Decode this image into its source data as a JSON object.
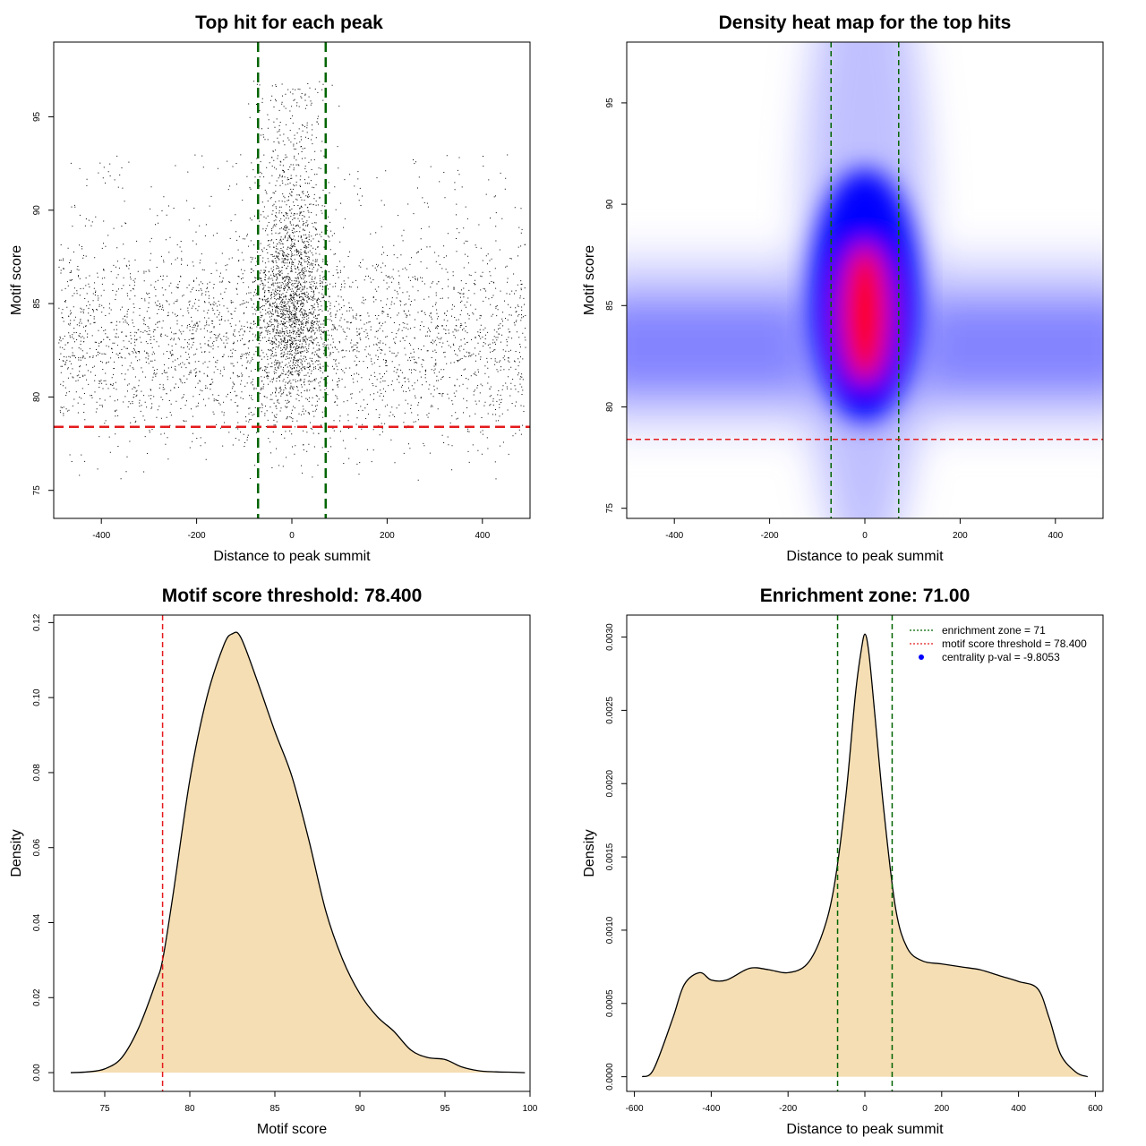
{
  "colors": {
    "frame": "#000000",
    "green_line": "#006400",
    "red_line": "#e41a1c",
    "fill_wheat": "#f5deb3",
    "heat_low": "#ffffff",
    "heat_mid": "#0000ff",
    "heat_high": "#ff0000"
  },
  "chart_data": [
    {
      "type": "scatter",
      "title": "Top hit for each peak",
      "xlabel": "Distance to peak summit",
      "ylabel": "Motif score",
      "xlim": [
        -500,
        500
      ],
      "ylim": [
        73.5,
        99
      ],
      "xticks": [
        "-400",
        "-200",
        "0",
        "200",
        "400"
      ],
      "yticks": [
        "75",
        "80",
        "85",
        "90",
        "95"
      ],
      "enrichment_zone": [
        -71,
        71
      ],
      "threshold": 78.4,
      "points_note": "approx. 9000 points; dense vertical column near 0"
    },
    {
      "type": "heatmap",
      "title": "Density heat map for the top hits",
      "xlabel": "Distance to peak summit",
      "ylabel": "Motif score",
      "xlim": [
        -500,
        500
      ],
      "ylim": [
        74.5,
        98
      ],
      "xticks": [
        "-400",
        "-200",
        "0",
        "200",
        "400"
      ],
      "yticks": [
        "75",
        "80",
        "85",
        "90",
        "95"
      ],
      "enrichment_zone": [
        -71,
        71
      ],
      "threshold": 78.4,
      "hotspot": {
        "x": 0,
        "y": 84.5
      },
      "baseline_band_y": 82.5
    },
    {
      "type": "area",
      "title": "Motif score threshold: 78.400",
      "xlabel": "Motif score",
      "ylabel": "Density",
      "xlim": [
        72,
        100
      ],
      "ylim": [
        -0.005,
        0.122
      ],
      "xticks": [
        "75",
        "80",
        "85",
        "90",
        "95",
        "100"
      ],
      "yticks": [
        "0.00",
        "0.02",
        "0.04",
        "0.06",
        "0.08",
        "0.10",
        "0.12"
      ],
      "threshold": 78.4,
      "x": [
        73,
        74,
        75,
        76,
        77,
        78,
        78.4,
        79,
        80,
        81,
        82,
        82.5,
        83,
        84,
        85,
        86,
        87,
        88,
        89,
        90,
        91,
        92,
        93,
        94,
        95,
        96,
        97,
        98,
        99,
        99.7
      ],
      "y": [
        0.0,
        0.0002,
        0.001,
        0.004,
        0.012,
        0.024,
        0.03,
        0.047,
        0.078,
        0.1,
        0.114,
        0.117,
        0.116,
        0.104,
        0.091,
        0.079,
        0.062,
        0.043,
        0.03,
        0.021,
        0.015,
        0.011,
        0.006,
        0.004,
        0.0035,
        0.0015,
        0.0005,
        0.0002,
        0.0001,
        0.0
      ]
    },
    {
      "type": "area",
      "title": "Enrichment zone: 71.00",
      "xlabel": "Distance to peak summit",
      "ylabel": "Density",
      "xlim": [
        -620,
        620
      ],
      "ylim": [
        -0.0001,
        0.00315
      ],
      "xticks": [
        "-600",
        "-400",
        "-200",
        "0",
        "200",
        "400",
        "600"
      ],
      "yticks": [
        "0.0000",
        "0.0005",
        "0.0010",
        "0.0015",
        "0.0020",
        "0.0025",
        "0.0030"
      ],
      "enrichment_zone": [
        -71,
        71
      ],
      "x": [
        -580,
        -550,
        -500,
        -470,
        -430,
        -400,
        -360,
        -300,
        -250,
        -200,
        -150,
        -110,
        -80,
        -50,
        -25,
        -10,
        0,
        10,
        25,
        50,
        80,
        110,
        150,
        200,
        250,
        300,
        350,
        400,
        450,
        480,
        510,
        550,
        580
      ],
      "y": [
        0.0,
        5e-05,
        0.0004,
        0.00063,
        0.00071,
        0.00066,
        0.00066,
        0.00074,
        0.00073,
        0.00071,
        0.00077,
        0.00098,
        0.0013,
        0.0019,
        0.0026,
        0.0029,
        0.00302,
        0.0029,
        0.0025,
        0.0018,
        0.00115,
        0.00088,
        0.00079,
        0.00077,
        0.00075,
        0.00073,
        0.00069,
        0.00065,
        0.0006,
        0.0004,
        0.00015,
        3e-05,
        0.0
      ],
      "legend": [
        {
          "label": "enrichment zone = 71",
          "color": "#006400",
          "style": "dotted-line"
        },
        {
          "label": "motif score threshold = 78.400",
          "color": "#e41a1c",
          "style": "dotted-line"
        },
        {
          "label": "centrality p-val = -9.8053",
          "color": "#0000ff",
          "style": "point"
        }
      ],
      "legend_position": "top-right"
    }
  ]
}
